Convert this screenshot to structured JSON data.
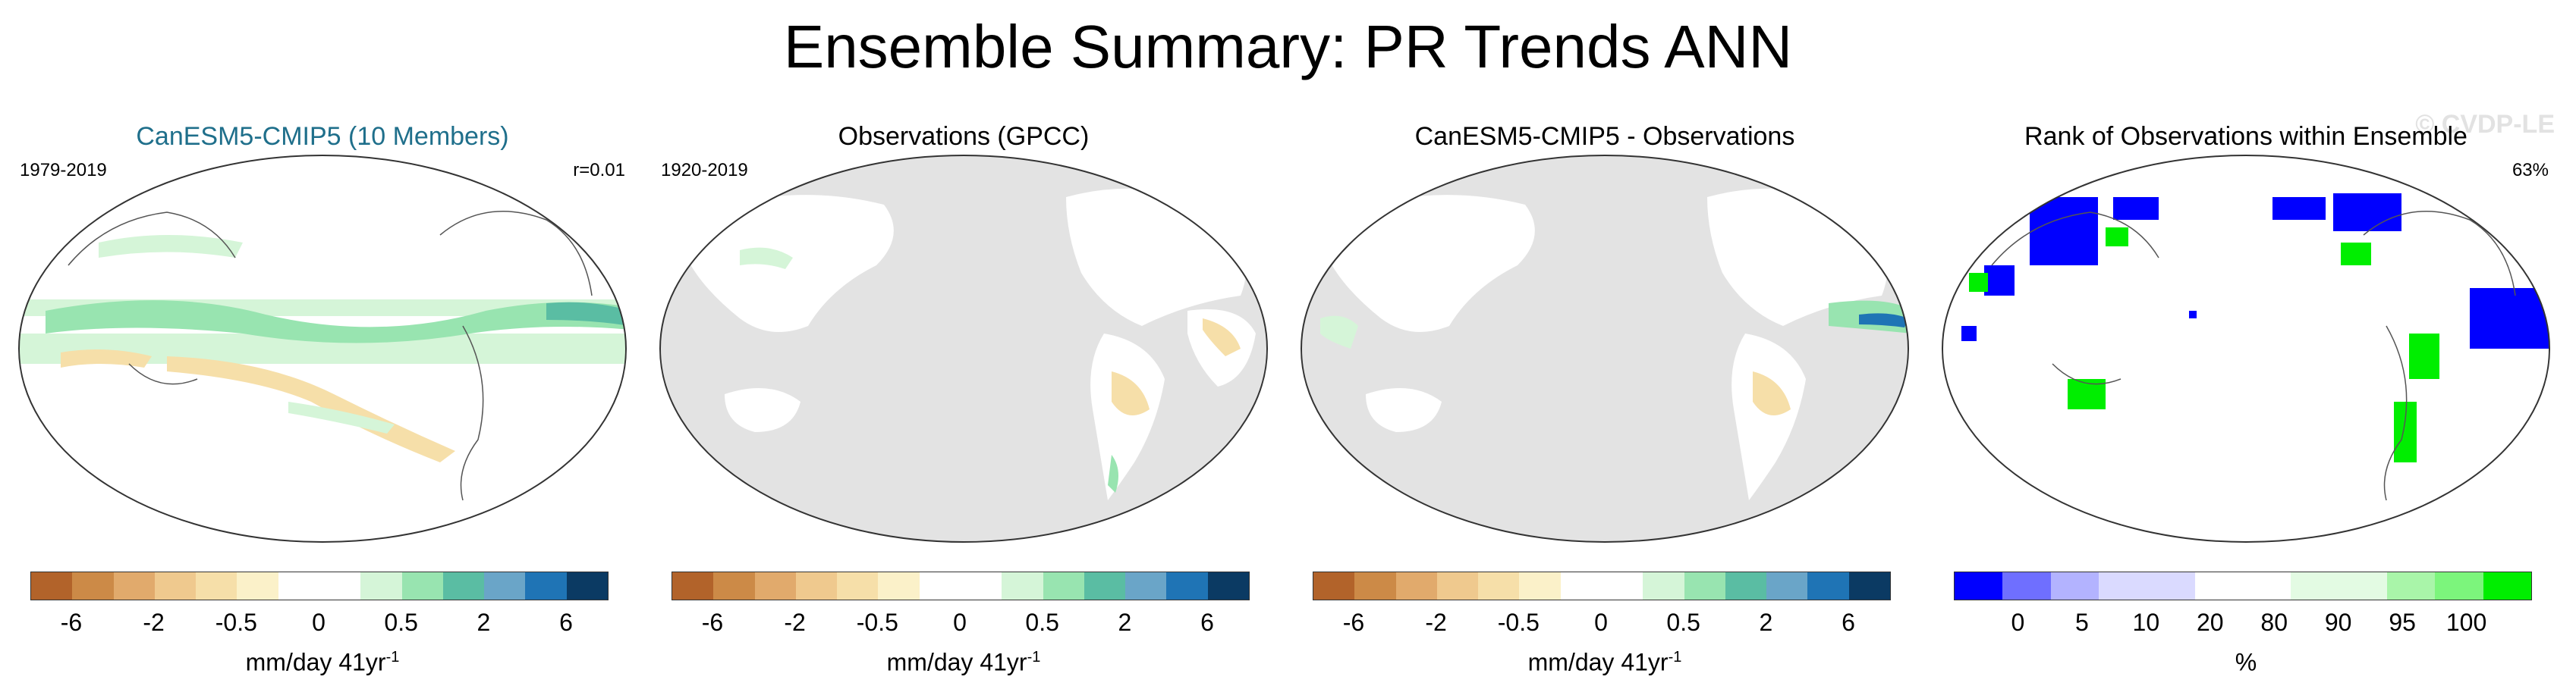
{
  "title": "Ensemble Summary: PR Trends ANN",
  "watermark": "© CVDP-LE",
  "colors": {
    "ocean_gray": "#e3e3e3",
    "land_white": "#ffffff",
    "wet": "#9ee6b4",
    "wet_strong": "#4fb7a1",
    "dry": "#f2d7a0",
    "rank_low": "#0000ff",
    "rank_high": "#00ee00"
  },
  "panels": [
    {
      "title": "CanESM5-CMIP5 (10 Members)",
      "left_label": "1979-2019",
      "right_label": "r=0.01",
      "units_main": "mm/day 41yr",
      "units_sup": "-1",
      "colorbar": [
        "#b2632a",
        "#cc8a47",
        "#e1aa6c",
        "#efc98e",
        "#f6dfa9",
        "#fbf1c9",
        "#ffffff",
        "#ffffff",
        "#d5f5d8",
        "#98e4b0",
        "#5abda3",
        "#6aa5c8",
        "#1f74b5",
        "#0b3a63"
      ],
      "ticks": [
        "-6",
        "-2",
        "-0.5",
        "0",
        "0.5",
        "2",
        "6"
      ]
    },
    {
      "title": "Observations (GPCC)",
      "left_label": "1920-2019",
      "right_label": "",
      "units_main": "mm/day 41yr",
      "units_sup": "-1",
      "colorbar": [
        "#b2632a",
        "#cc8a47",
        "#e1aa6c",
        "#efc98e",
        "#f6dfa9",
        "#fbf1c9",
        "#ffffff",
        "#ffffff",
        "#d5f5d8",
        "#98e4b0",
        "#5abda3",
        "#6aa5c8",
        "#1f74b5",
        "#0b3a63"
      ],
      "ticks": [
        "-6",
        "-2",
        "-0.5",
        "0",
        "0.5",
        "2",
        "6"
      ]
    },
    {
      "title": "CanESM5-CMIP5 - Observations",
      "left_label": "",
      "right_label": "",
      "units_main": "mm/day 41yr",
      "units_sup": "-1",
      "colorbar": [
        "#b2632a",
        "#cc8a47",
        "#e1aa6c",
        "#efc98e",
        "#f6dfa9",
        "#fbf1c9",
        "#ffffff",
        "#ffffff",
        "#d5f5d8",
        "#98e4b0",
        "#5abda3",
        "#6aa5c8",
        "#1f74b5",
        "#0b3a63"
      ],
      "ticks": [
        "-6",
        "-2",
        "-0.5",
        "0",
        "0.5",
        "2",
        "6"
      ]
    },
    {
      "title": "Rank of Observations within Ensemble",
      "left_label": "",
      "right_label": "63%",
      "units_main": "%",
      "units_sup": "",
      "colorbar": [
        "#0000ff",
        "#6f6fff",
        "#b3b3ff",
        "#dadaff",
        "#dadaff",
        "#ffffff",
        "#ffffff",
        "#e3fbe3",
        "#e3fbe3",
        "#a9f5a9",
        "#7cf57c",
        "#00ee00"
      ],
      "ticks": [
        "0",
        "5",
        "10",
        "20",
        "80",
        "90",
        "95",
        "100"
      ]
    }
  ]
}
